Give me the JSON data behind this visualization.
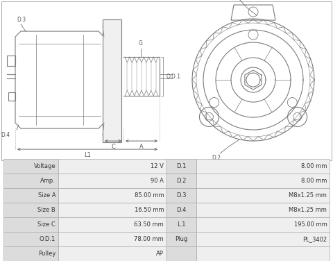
{
  "bg_color": "#ffffff",
  "table_bg_label": "#dcdcdc",
  "table_bg_value": "#efefef",
  "table_border": "#aaaaaa",
  "drawing_color": "#7a7a7a",
  "label_color": "#555555",
  "line_color": "#888888",
  "rows_left": [
    [
      "Voltage",
      "12 V"
    ],
    [
      "Amp.",
      "90 A"
    ],
    [
      "Size A",
      "85.00 mm"
    ],
    [
      "Size B",
      "16.50 mm"
    ],
    [
      "Size C",
      "63.50 mm"
    ],
    [
      "O.D.1",
      "78.00 mm"
    ],
    [
      "Pulley",
      "AP"
    ]
  ],
  "rows_right": [
    [
      "D.1",
      "8.00 mm"
    ],
    [
      "D.2",
      "8.00 mm"
    ],
    [
      "D.3",
      "M8x1.25 mm"
    ],
    [
      "D.4",
      "M8x1.25 mm"
    ],
    [
      "L.1",
      "195.00 mm"
    ],
    [
      "Plug",
      "PL_3402"
    ],
    [
      "",
      ""
    ]
  ]
}
